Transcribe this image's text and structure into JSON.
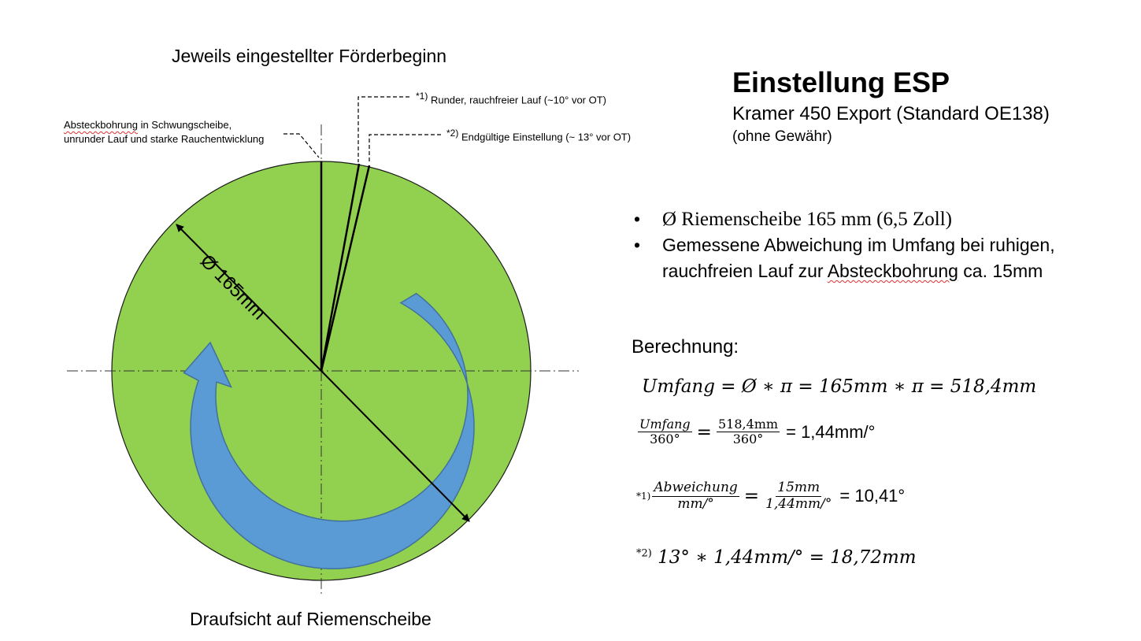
{
  "diagram": {
    "title_top": "Jeweils eingestellter Förderbeginn",
    "title_bottom": "Draufsicht auf Riemenscheibe",
    "diameter_label": "Ø 165mm",
    "note_left_line1_word": "Absteckbohrung",
    "note_left_line1_rest": " in Schwungscheibe,",
    "note_left_line2": "unrunder Lauf und starke Rauchentwicklung",
    "note1_mark": "*1)",
    "note1_text": " Runder, rauchfreier Lauf (~10° vor OT)",
    "note2_mark": "*2)",
    "note2_text": " Endgültige Einstellung (~ 13° vor OT)",
    "colors": {
      "pulley": "#92d050",
      "arrow": "#5b9bd5",
      "arrow_outline": "#41719c"
    }
  },
  "header": {
    "title": "Einstellung ESP",
    "subtitle": "Kramer 450 Export (Standard OE138)",
    "disclaimer": "(ohne Gewähr)"
  },
  "bullets": {
    "b1": "Ø Riemenscheibe 165 mm (6,5 Zoll)",
    "b2_part1": "Gemessene Abweichung im Umfang bei ruhigen, rauchfreien Lauf zur ",
    "b2_word": "Absteckbohrung",
    "b2_part2": " ca. 15mm"
  },
  "calc": {
    "label": "Berechnung:",
    "eq1": "Umfang = Ø ∗ π = 165mm ∗ π = 518,4mm",
    "eq2_num1": "Umfang",
    "eq2_den1": "360°",
    "eq2_eq": "=",
    "eq2_num2": "518,4mm",
    "eq2_den2": "360°",
    "eq2_result": "= 1,44mm/°",
    "eq3_mark": "*1)",
    "eq3_num1": "Abweichung",
    "eq3_den1": "mm/°",
    "eq3_eq": "=",
    "eq3_num2": "15mm",
    "eq3_den2": "1,44mm/°",
    "eq3_result": "= 10,41°",
    "eq4_mark": "*2)",
    "eq4": "13° ∗ 1,44mm/° = 18,72mm"
  }
}
